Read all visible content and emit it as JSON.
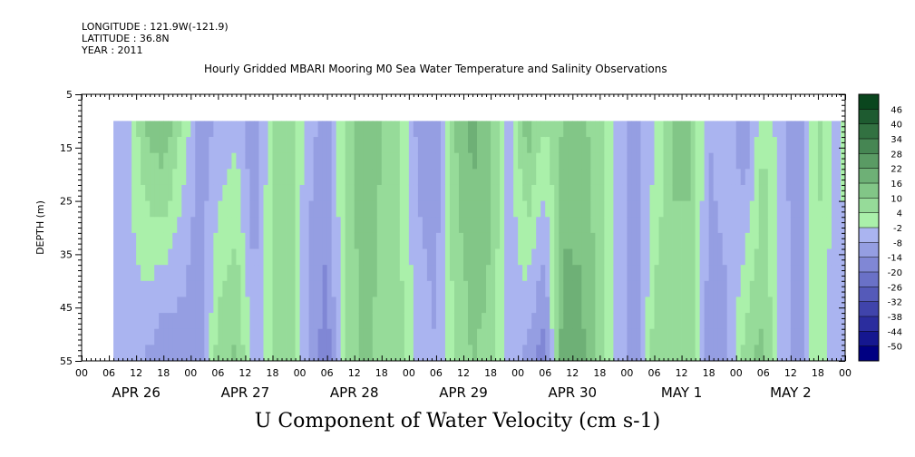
{
  "header": {
    "longitude": "LONGITUDE : 121.9W(-121.9)",
    "latitude": "LATITUDE : 36.8N",
    "year": "YEAR : 2011"
  },
  "chart_data": {
    "type": "heatmap",
    "title": "U Component of Water Velocity (cm s-1)",
    "subtitle": "Hourly Gridded MBARI Mooring M0 Sea Water Temperature and Salinity Observations",
    "ylabel": "DEPTH (m)",
    "xlabel": "",
    "ylim": [
      55,
      5
    ],
    "y_ticks": [
      5,
      15,
      25,
      35,
      45,
      55
    ],
    "data_depth_range": [
      10,
      55
    ],
    "x_hour_ticks": [
      "00",
      "06",
      "12",
      "18",
      "00",
      "06",
      "12",
      "18",
      "00",
      "06",
      "12",
      "18",
      "00",
      "06",
      "12",
      "18",
      "00",
      "06",
      "12",
      "18",
      "00",
      "06",
      "12",
      "18",
      "00",
      "06",
      "12",
      "18",
      "00"
    ],
    "x_day_labels": [
      "APR 26",
      "APR 27",
      "APR 28",
      "APR 29",
      "APR 30",
      "MAY  1",
      "MAY  2"
    ],
    "time_start_hour": 7,
    "time_end_hour": 168,
    "colorbar": {
      "levels": [
        -50,
        -44,
        -38,
        -32,
        -26,
        -20,
        -14,
        -8,
        -2,
        4,
        10,
        16,
        22,
        28,
        34,
        40,
        46
      ],
      "tick_labels": [
        "46",
        "40",
        "34",
        "28",
        "22",
        "16",
        "10",
        "4",
        "-2",
        "-8",
        "-14",
        "-20",
        "-26",
        "-32",
        "-38",
        "-44",
        "-50"
      ]
    },
    "grid": false,
    "values_by_hour": [
      {
        "hour": 7,
        "shallow": -6,
        "deep": -6
      },
      {
        "hour": 10,
        "shallow": -4,
        "deep": -4
      },
      {
        "hour": 14,
        "shallow": 10,
        "deep": -8
      },
      {
        "hour": 18,
        "shallow": 16,
        "deep": -14
      },
      {
        "hour": 22,
        "shallow": 4,
        "deep": -12
      },
      {
        "hour": 26,
        "shallow": -10,
        "deep": -14
      },
      {
        "hour": 30,
        "shallow": -8,
        "deep": 8
      },
      {
        "hour": 34,
        "shallow": -4,
        "deep": 12
      },
      {
        "hour": 38,
        "shallow": -14,
        "deep": -6
      },
      {
        "hour": 42,
        "shallow": 4,
        "deep": 4
      },
      {
        "hour": 46,
        "shallow": 6,
        "deep": 8
      },
      {
        "hour": 50,
        "shallow": -6,
        "deep": -10
      },
      {
        "hour": 54,
        "shallow": -10,
        "deep": -18
      },
      {
        "hour": 58,
        "shallow": 4,
        "deep": 6
      },
      {
        "hour": 62,
        "shallow": 14,
        "deep": 12
      },
      {
        "hour": 66,
        "shallow": 10,
        "deep": 8
      },
      {
        "hour": 70,
        "shallow": 4,
        "deep": 6
      },
      {
        "hour": 74,
        "shallow": -10,
        "deep": -4
      },
      {
        "hour": 78,
        "shallow": -12,
        "deep": -8
      },
      {
        "hour": 82,
        "shallow": 10,
        "deep": 4
      },
      {
        "hour": 86,
        "shallow": 18,
        "deep": 10
      },
      {
        "hour": 90,
        "shallow": 12,
        "deep": 8
      },
      {
        "hour": 94,
        "shallow": -6,
        "deep": -6
      },
      {
        "hour": 98,
        "shallow": 14,
        "deep": -10
      },
      {
        "hour": 102,
        "shallow": 4,
        "deep": -18
      },
      {
        "hour": 106,
        "shallow": 10,
        "deep": 22
      },
      {
        "hour": 110,
        "shallow": 12,
        "deep": 18
      },
      {
        "hour": 114,
        "shallow": 6,
        "deep": 8
      },
      {
        "hour": 118,
        "shallow": -6,
        "deep": -4
      },
      {
        "hour": 122,
        "shallow": -10,
        "deep": -14
      },
      {
        "hour": 126,
        "shallow": -4,
        "deep": 8
      },
      {
        "hour": 130,
        "shallow": 12,
        "deep": 6
      },
      {
        "hour": 134,
        "shallow": 10,
        "deep": 10
      },
      {
        "hour": 138,
        "shallow": -8,
        "deep": -12
      },
      {
        "hour": 142,
        "shallow": -4,
        "deep": -10
      },
      {
        "hour": 146,
        "shallow": -14,
        "deep": 8
      },
      {
        "hour": 150,
        "shallow": 4,
        "deep": 12
      },
      {
        "hour": 154,
        "shallow": -6,
        "deep": -6
      },
      {
        "hour": 158,
        "shallow": -12,
        "deep": -10
      },
      {
        "hour": 162,
        "shallow": 6,
        "deep": 4
      },
      {
        "hour": 166,
        "shallow": -4,
        "deep": -8
      },
      {
        "hour": 168,
        "shallow": 2,
        "deep": -6
      }
    ]
  }
}
